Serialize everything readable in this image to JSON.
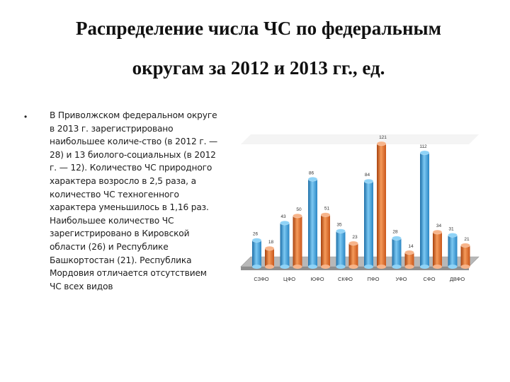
{
  "slide": {
    "title_line1": "Распределение числа ЧС по федеральным",
    "title_line2": "округам за 2012 и 2013 гг., ед.",
    "bullet_text": "В Приволжском федеральном округе в 2013 г. зарегистрировано наибольшее количе-ство (в 2012 г. — 28) и 13 биолого-социальных (в 2012 г. — 12). Количество ЧС природного характера возросло в 2,5 раза, а количество ЧС техногенного характера уменьшилось в 1,16 раз. Наибольшее количество ЧС зарегистрировано в Кировской области (26) и Республике Башкортостан (21). Республика Мордовия отличается отсутствием ЧС всех видов"
  },
  "colors": {
    "series_a": "#3aa0dc",
    "series_b": "#e06820",
    "floor": "#b8b8b8",
    "wall": "#ececec"
  },
  "chart_data": {
    "type": "bar",
    "categories": [
      "СЗФО",
      "ЦФО",
      "ЮФО",
      "СКФО",
      "ПФО",
      "УФО",
      "СФО",
      "ДВФО"
    ],
    "series": [
      {
        "values": [
          26,
          43,
          86,
          35,
          84,
          28,
          112,
          31
        ]
      },
      {
        "values": [
          18,
          50,
          51,
          23,
          121,
          14,
          34,
          21
        ]
      }
    ],
    "data_labels": [
      [
        "26",
        "43",
        "86",
        "35",
        "84",
        "28",
        "112",
        "31"
      ],
      [
        "18",
        "50",
        "51",
        "23",
        "121",
        "14",
        "34",
        "21"
      ]
    ],
    "ylim": [
      0,
      130
    ],
    "grid": false,
    "legend": "none"
  }
}
